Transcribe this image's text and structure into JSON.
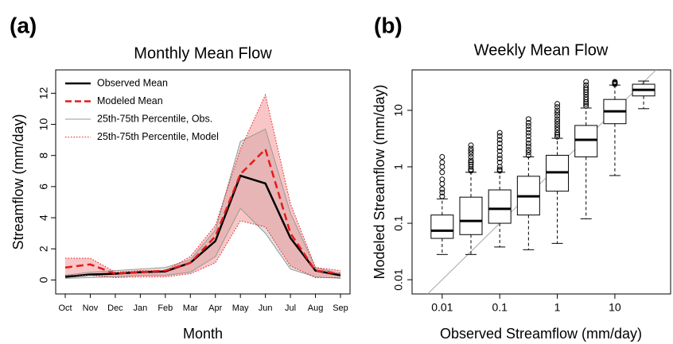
{
  "chart_data": [
    {
      "type": "line",
      "label": "(a)",
      "title": "Monthly Mean Flow",
      "x_label": "Month",
      "y_label": "Streamflow (mm/day)",
      "categories": [
        "Oct",
        "Nov",
        "Dec",
        "Jan",
        "Feb",
        "Mar",
        "Apr",
        "May",
        "Jun",
        "Jul",
        "Aug",
        "Sep"
      ],
      "ylim": [
        -0.9,
        13.5
      ],
      "yticks": [
        0,
        2,
        4,
        6,
        8,
        10,
        12
      ],
      "legend": "top-left",
      "series": [
        {
          "name": "Observed Mean",
          "color": "#000000",
          "style": "solid",
          "values": [
            0.2,
            0.35,
            0.4,
            0.5,
            0.55,
            1.1,
            2.5,
            6.7,
            6.2,
            2.7,
            0.6,
            0.3
          ]
        },
        {
          "name": "Modeled Mean",
          "color": "#e41a1c",
          "style": "dashed",
          "values": [
            0.8,
            1.0,
            0.4,
            0.5,
            0.6,
            1.1,
            2.8,
            6.8,
            8.4,
            3.0,
            0.6,
            0.4
          ]
        },
        {
          "name": "25th-75th Percentile, Obs.",
          "color": "#999999",
          "fill": "#bdbdbd",
          "style": "band",
          "lower": [
            0.1,
            0.15,
            0.2,
            0.3,
            0.3,
            0.5,
            1.5,
            4.6,
            3.0,
            0.7,
            0.2,
            0.1
          ],
          "upper": [
            0.3,
            0.5,
            0.6,
            0.7,
            0.8,
            1.3,
            3.2,
            8.9,
            9.7,
            4.3,
            0.8,
            0.4
          ]
        },
        {
          "name": "25th-75th Percentile, Model",
          "color": "#e41a1c",
          "fill": "#f08080",
          "style": "dotted-band",
          "lower": [
            0.3,
            0.3,
            0.15,
            0.2,
            0.2,
            0.4,
            1.1,
            3.8,
            3.4,
            0.9,
            0.15,
            0.15
          ],
          "upper": [
            1.4,
            1.4,
            0.5,
            0.6,
            0.6,
            1.5,
            3.5,
            8.4,
            11.9,
            4.9,
            0.8,
            0.6
          ]
        }
      ]
    },
    {
      "type": "box",
      "label": "(b)",
      "title": "Weekly Mean Flow",
      "x_label": "Observed Streamflow (mm/day)",
      "y_label": "Modeled Streamflow (mm/day)",
      "log_x": true,
      "log_y": true,
      "diagonal": true,
      "xlim": [
        0.003,
        93
      ],
      "xticks": [
        0.01,
        0.1,
        1,
        10
      ],
      "ylim": [
        0.0056,
        52
      ],
      "yticks": [
        0.01,
        0.1,
        1,
        10
      ],
      "boxes": [
        {
          "x": 0.01,
          "whisker_low": 0.028,
          "q1": 0.054,
          "median": 0.074,
          "q3": 0.14,
          "whisker_high": 0.27,
          "outliers": [
            0.3,
            0.35,
            0.4,
            0.5,
            0.6,
            0.8,
            1.0,
            1.2,
            1.5
          ]
        },
        {
          "x": 0.0316,
          "whisker_low": 0.028,
          "q1": 0.063,
          "median": 0.11,
          "q3": 0.29,
          "whisker_high": 0.8,
          "outliers": [
            0.85,
            0.9,
            1.0,
            1.1,
            1.2,
            1.3,
            1.5,
            1.7,
            1.9,
            2.1,
            2.4
          ]
        },
        {
          "x": 0.1,
          "whisker_low": 0.038,
          "q1": 0.1,
          "median": 0.18,
          "q3": 0.39,
          "whisker_high": 0.8,
          "outliers": [
            0.85,
            0.9,
            1.0,
            1.2,
            1.4,
            1.6,
            1.9,
            2.2,
            2.6,
            3.0,
            3.5,
            4.0
          ]
        },
        {
          "x": 0.316,
          "whisker_low": 0.034,
          "q1": 0.14,
          "median": 0.3,
          "q3": 0.68,
          "whisker_high": 1.5,
          "outliers": [
            1.6,
            1.8,
            2.0,
            2.3,
            2.6,
            3.0,
            3.5,
            4.0,
            4.6,
            5.3,
            6.0,
            7.0
          ]
        },
        {
          "x": 1,
          "whisker_low": 0.044,
          "q1": 0.37,
          "median": 0.8,
          "q3": 1.6,
          "whisker_high": 3.2,
          "outliers": [
            3.4,
            3.7,
            4.0,
            4.5,
            5.0,
            5.6,
            6.3,
            7.0,
            8.0,
            9.0,
            10.0,
            11.5,
            13.0
          ]
        },
        {
          "x": 3.16,
          "whisker_low": 0.12,
          "q1": 1.5,
          "median": 3.0,
          "q3": 5.4,
          "whisker_high": 11,
          "outliers": [
            12,
            13,
            14,
            15.5,
            17,
            19,
            21,
            23,
            25,
            28,
            32
          ]
        },
        {
          "x": 10,
          "whisker_low": 0.7,
          "q1": 5.8,
          "median": 9.6,
          "q3": 15.6,
          "whisker_high": 28,
          "outliers": [
            29,
            30,
            31,
            32
          ]
        },
        {
          "x": 31.6,
          "whisker_low": 10.7,
          "q1": 18,
          "median": 23,
          "q3": 29,
          "whisker_high": 33,
          "outliers": []
        }
      ]
    }
  ]
}
